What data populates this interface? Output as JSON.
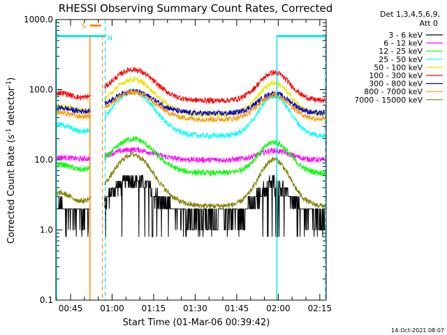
{
  "chart_data": {
    "type": "line",
    "title": "RHESSI Observing Summary Count Rates, Corrected",
    "xlabel": "Start Time (01-Mar-06 00:39:42)",
    "ylabel_main": "Corrected Count Rate (s",
    "ylabel_sup1": "-1",
    "ylabel_mid": " detector",
    "ylabel_sup2": "-1",
    "ylabel_end": ")",
    "yscale": "log",
    "ylim": [
      0.1,
      1000
    ],
    "xlim_minutes": [
      39.7,
      137.3
    ],
    "x_ticks": [
      {
        "minute": 45,
        "label": "00:45"
      },
      {
        "minute": 60,
        "label": "01:00"
      },
      {
        "minute": 75,
        "label": "01:15"
      },
      {
        "minute": 90,
        "label": "01:30"
      },
      {
        "minute": 105,
        "label": "01:45"
      },
      {
        "minute": 120,
        "label": "02:00"
      },
      {
        "minute": 135,
        "label": "02:15"
      }
    ],
    "y_ticks": [
      {
        "value": 0.1,
        "label": "0.1"
      },
      {
        "value": 1,
        "label": "1.0"
      },
      {
        "value": 10,
        "label": "10.0"
      },
      {
        "value": 100,
        "label": "100.0"
      },
      {
        "value": 1000,
        "label": "1000.0"
      }
    ],
    "legend_header": [
      "Det 1,3,4,5,6,9,",
      "Att 0"
    ],
    "legend_position": "right",
    "series": [
      {
        "name": "3 - 6 keV",
        "color": "#000000",
        "peak": 5,
        "base": 1.5,
        "noisy": true
      },
      {
        "name": "6 - 12 keV",
        "color": "#ff00ff",
        "peak": 14,
        "base": 10
      },
      {
        "name": "12 - 25 keV",
        "color": "#00ff00",
        "peak": 20,
        "base": 6.5
      },
      {
        "name": "25 - 50 keV",
        "color": "#00ffff",
        "peak": 95,
        "base": 22
      },
      {
        "name": "50 - 100 keV",
        "color": "#e8e800",
        "peak": 140,
        "base": 45
      },
      {
        "name": "100 - 300 keV",
        "color": "#ff0000",
        "peak": 195,
        "base": 70
      },
      {
        "name": "300 - 800 keV",
        "color": "#0000cc",
        "peak": 95,
        "base": 46
      },
      {
        "name": "800 - 7000 keV",
        "color": "#ff9900",
        "peak": 92,
        "base": 38
      },
      {
        "name": "7000 - 15000 keV",
        "color": "#808000",
        "peak": 12,
        "base": 2.2
      }
    ],
    "peaks_minutes": [
      67.5,
      118.5
    ],
    "markers": {
      "S_label": "S",
      "N_label": "N",
      "S_bar_minutes": [
        52,
        56
      ],
      "S_line_minute": 52,
      "N_dashed_minutes": [
        56.5,
        57.5
      ],
      "night_solid_minutes": [
        39.9,
        119.5
      ],
      "night_dashed_minute": 137.0,
      "night_bars_minutes": [
        [
          39.9,
          57.5
        ],
        [
          119.5,
          137.0
        ]
      ],
      "night_bar_value": 580
    },
    "grid": false
  },
  "footer": {
    "timestamp": "14-Oct-2021 08:07"
  }
}
